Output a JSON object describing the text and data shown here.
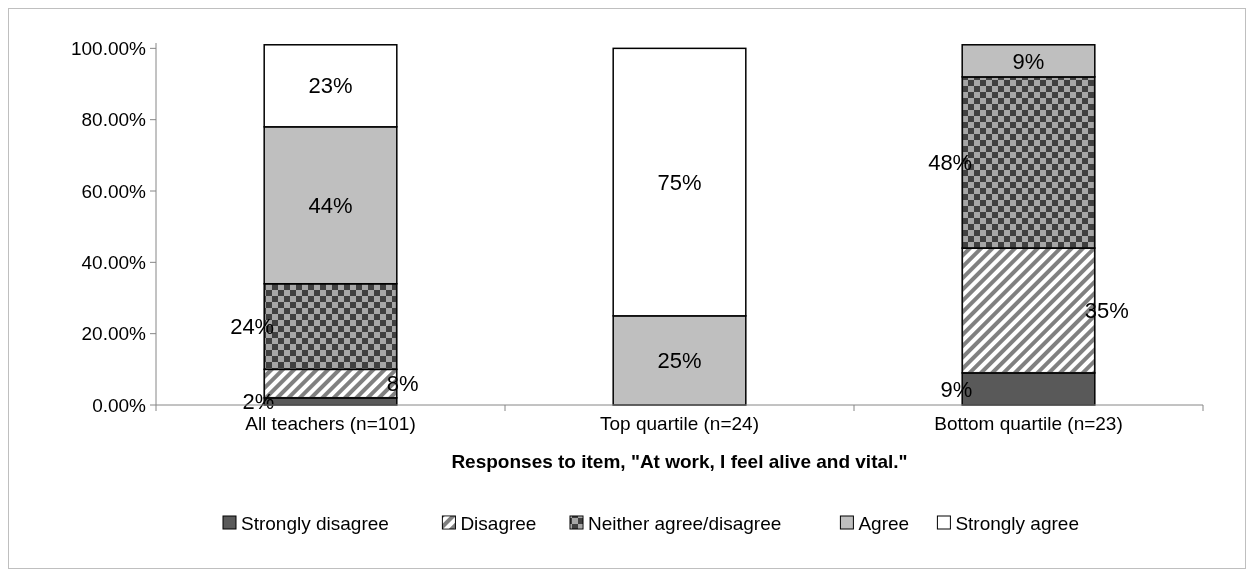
{
  "chart_data": {
    "type": "bar",
    "stacked": true,
    "xlabel": "Responses to item, \"At work, I feel alive and vital.\"",
    "categories": [
      "All teachers (n=101)",
      "Top quartile (n=24)",
      "Bottom quartile (n=23)"
    ],
    "ylim": [
      0,
      101.5
    ],
    "yticks": [
      {
        "value": 0,
        "label": "0.00%"
      },
      {
        "value": 20,
        "label": "20.00%"
      },
      {
        "value": 40,
        "label": "40.00%"
      },
      {
        "value": 60,
        "label": "60.00%"
      },
      {
        "value": 80,
        "label": "80.00%"
      },
      {
        "value": 100,
        "label": "100.00%"
      }
    ],
    "grid": false,
    "legend": "bottom",
    "series": [
      {
        "name": "Strongly disagree",
        "color": "#595959",
        "values": [
          2,
          null,
          9
        ],
        "value_labels": [
          "2%",
          null,
          "9%"
        ]
      },
      {
        "name": "Disagree",
        "color": "#808080",
        "values": [
          8,
          null,
          35
        ],
        "value_labels": [
          "8%",
          null,
          "35%"
        ]
      },
      {
        "name": "Neither agree/disagree",
        "color": "#404040",
        "values": [
          24,
          null,
          48
        ],
        "value_labels": [
          "24%",
          null,
          "48%"
        ]
      },
      {
        "name": "Agree",
        "color": "#bfbfbf",
        "values": [
          44,
          25,
          9
        ],
        "value_labels": [
          "44%",
          "25%",
          "9%"
        ]
      },
      {
        "name": "Strongly agree",
        "color": "#ffffff",
        "values": [
          23,
          75,
          null
        ],
        "value_labels": [
          "23%",
          "75%",
          null
        ]
      }
    ]
  }
}
